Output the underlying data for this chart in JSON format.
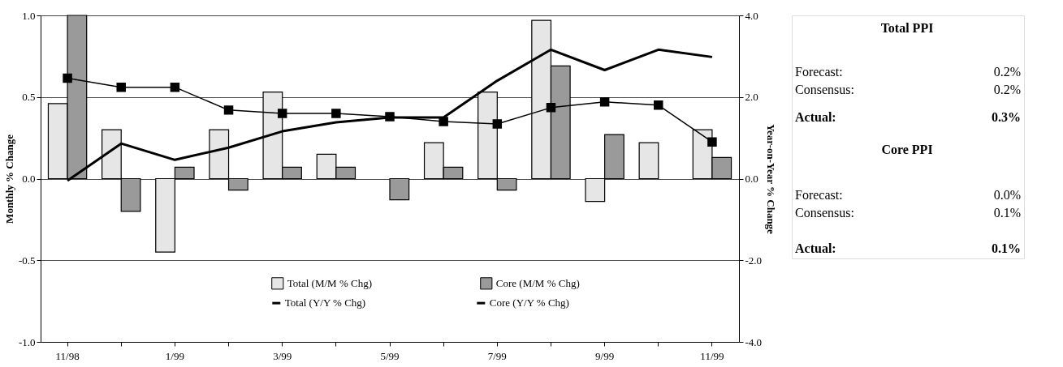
{
  "chart_data": [
    {
      "type": "bar",
      "categories": [
        "11/98",
        null,
        "1/99",
        null,
        "3/99",
        null,
        "5/99",
        null,
        "7/99",
        null,
        "9/99",
        null,
        "11/99"
      ],
      "series": [
        {
          "name": "Total (M/M % Chg)",
          "color": "#e6e6e6",
          "type": "bar",
          "values": [
            0.46,
            0.3,
            -0.45,
            0.3,
            0.53,
            0.15,
            null,
            0.22,
            0.53,
            0.97,
            -0.14,
            0.22,
            0.3
          ]
        },
        {
          "name": "Core (M/M % Chg)",
          "color": "#9a9a9a",
          "type": "bar",
          "values": [
            1.0,
            -0.2,
            0.07,
            -0.07,
            0.07,
            0.07,
            -0.13,
            0.07,
            -0.07,
            0.69,
            0.27,
            null,
            0.13
          ]
        },
        {
          "name": "Total (Y/Y % Chg)",
          "color": "#000000",
          "type": "line",
          "axis": "y2",
          "marker": "none",
          "values": [
            -0.05,
            0.86,
            0.46,
            0.76,
            1.16,
            1.38,
            1.5,
            1.5,
            2.4,
            3.16,
            2.66,
            3.16,
            2.98
          ]
        },
        {
          "name": "Core (Y/Y % Chg)",
          "color": "#000000",
          "type": "line",
          "axis": "y2",
          "marker": "square",
          "values": [
            2.46,
            2.24,
            2.24,
            1.68,
            1.6,
            1.6,
            1.52,
            1.4,
            1.34,
            1.74,
            1.88,
            1.8,
            0.9
          ]
        }
      ],
      "ylim": [
        -1,
        1
      ],
      "yticks": [
        {
          "value": -1,
          "label": "-1.0"
        },
        {
          "value": -0.5,
          "label": "-0.5"
        },
        {
          "value": 0,
          "label": "0.0"
        },
        {
          "value": 0.5,
          "label": "0.5"
        },
        {
          "value": 1,
          "label": "1.0"
        }
      ],
      "y2lim": [
        -4,
        4
      ],
      "y2ticks": [
        {
          "value": -4,
          "label": "-4.0"
        },
        {
          "value": -2,
          "label": "-2.0"
        },
        {
          "value": 0,
          "label": "0.0"
        },
        {
          "value": 2,
          "label": "2.0"
        },
        {
          "value": 4,
          "label": "4.0"
        }
      ],
      "ylabel": "Monthly % Change",
      "y2label": "Year-on-Year % Change",
      "grid": "y",
      "legend": "bottom"
    },
    {
      "type": "other",
      "title": "Total PPI",
      "annotations": [
        "Forecast:",
        "0.2%",
        "Consensus:",
        "0.2%",
        "Actual:",
        "0.3%",
        "Core PPI",
        "Forecast:",
        "0.0%",
        "Consensus:",
        "0.1%",
        "Actual:",
        "0.1%"
      ]
    }
  ]
}
